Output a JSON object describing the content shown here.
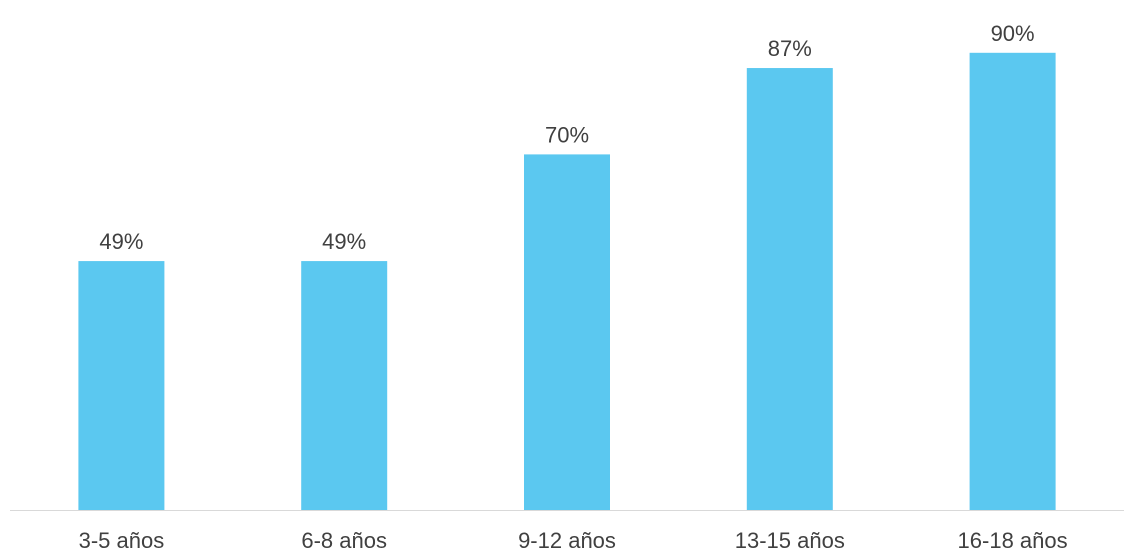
{
  "chart_data": {
    "type": "bar",
    "categories": [
      "3-5 años",
      "6-8 años",
      "9-12 años",
      "13-15 años",
      "16-18 años"
    ],
    "values": [
      49,
      49,
      70,
      87,
      90
    ],
    "data_labels": [
      "49%",
      "49%",
      "70%",
      "87%",
      "90%"
    ],
    "title": "",
    "xlabel": "",
    "ylabel": "",
    "ylim": [
      0,
      100
    ],
    "grid": false,
    "legend": "none",
    "colors": {
      "bar": "#5BC8F0",
      "axis": "#D9D9D9",
      "text": "#404040"
    }
  }
}
